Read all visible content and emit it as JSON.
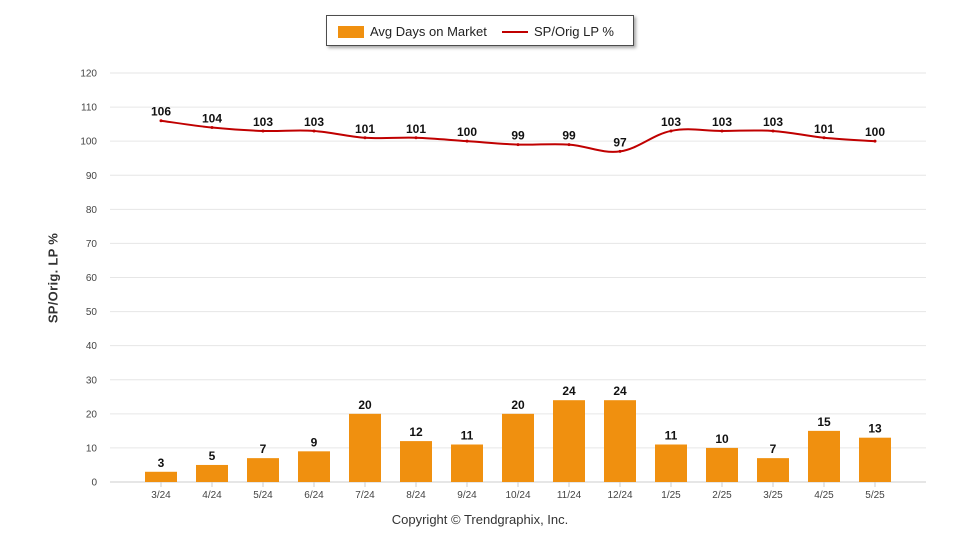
{
  "legend": {
    "bar_label": "Avg Days on Market",
    "line_label": "SP/Orig LP %"
  },
  "footer": {
    "copyright": "Copyright © Trendgraphix, Inc."
  },
  "colors": {
    "bar": "#f0900f",
    "line": "#c00000",
    "grid": "#e6e6e6",
    "tick_text": "#444444"
  },
  "chart_data": {
    "type": "bar",
    "title": "",
    "xlabel": "",
    "ylabel": "SP/Orig. LP %",
    "ylim": [
      0,
      120
    ],
    "yticks": [
      0,
      10,
      20,
      30,
      40,
      50,
      60,
      70,
      80,
      90,
      100,
      110,
      120
    ],
    "grid": true,
    "legend_position": "top-center",
    "categories": [
      "3/24",
      "4/24",
      "5/24",
      "6/24",
      "7/24",
      "8/24",
      "9/24",
      "10/24",
      "11/24",
      "12/24",
      "1/25",
      "2/25",
      "3/25",
      "4/25",
      "5/25"
    ],
    "series": [
      {
        "name": "Avg Days on Market",
        "type": "bar",
        "values": [
          3,
          5,
          7,
          9,
          20,
          12,
          11,
          20,
          24,
          24,
          11,
          10,
          7,
          15,
          13
        ]
      },
      {
        "name": "SP/Orig LP %",
        "type": "line",
        "values": [
          106,
          104,
          103,
          103,
          101,
          101,
          100,
          99,
          99,
          97,
          103,
          103,
          103,
          101,
          100
        ]
      }
    ]
  }
}
